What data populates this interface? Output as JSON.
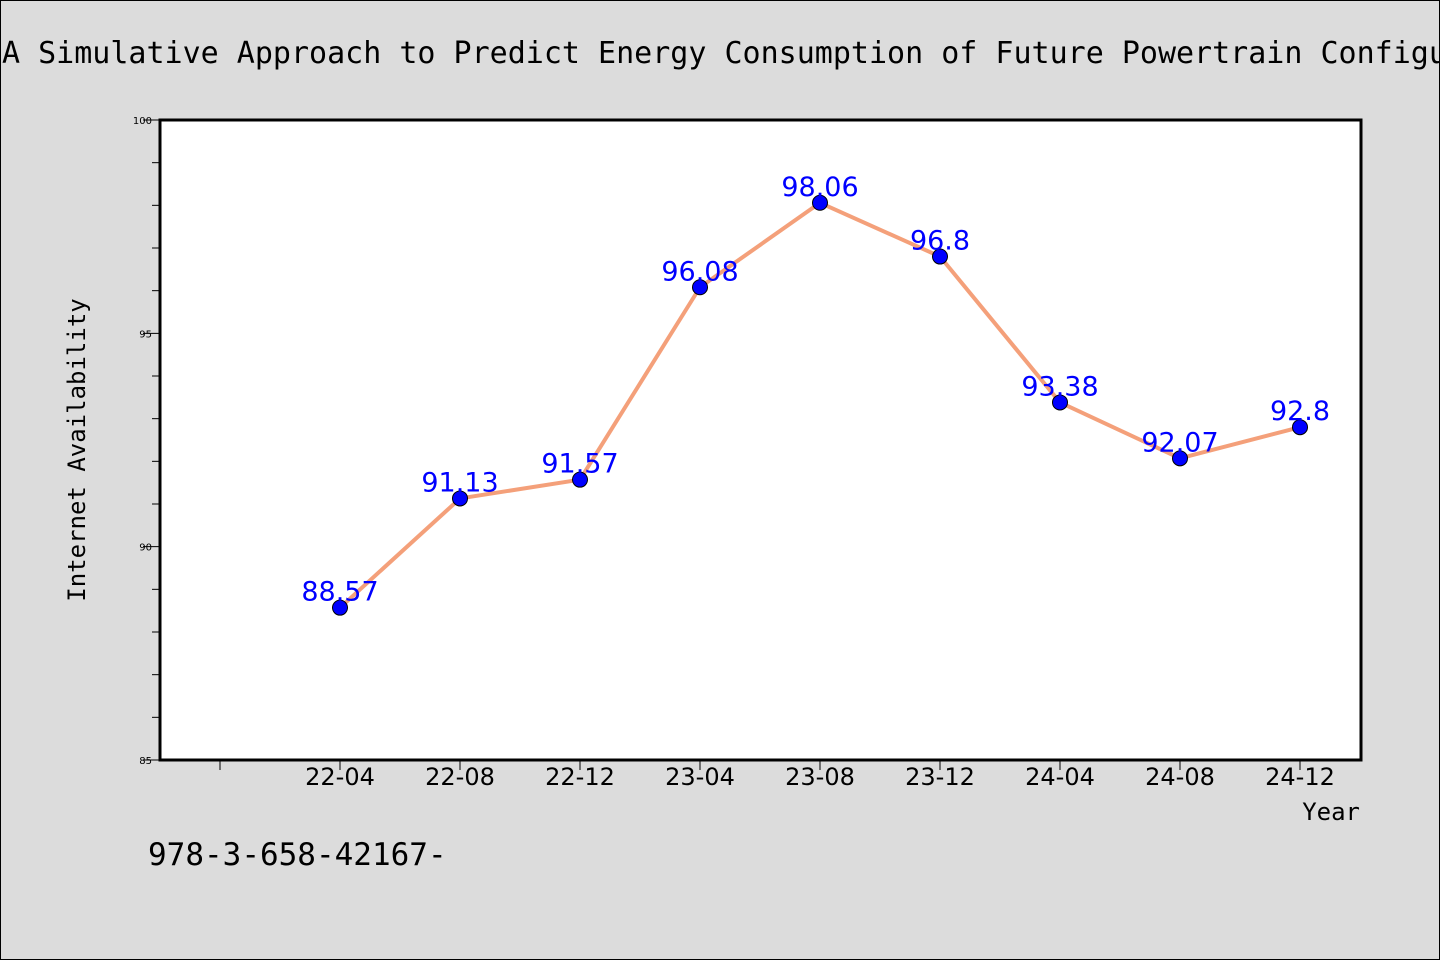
{
  "chart_data": {
    "type": "line",
    "title": "A Simulative Approach to Predict Energy Consumption of Future Powertrain Configu",
    "xlabel": "Year",
    "ylabel": "Internet Availability",
    "categories": [
      "22-04",
      "22-08",
      "22-12",
      "23-04",
      "23-08",
      "23-12",
      "24-04",
      "24-08",
      "24-12"
    ],
    "series": [
      {
        "name": "",
        "values": [
          88.57,
          91.13,
          91.57,
          96.08,
          98.06,
          96.8,
          93.38,
          92.07,
          92.8
        ],
        "labels": [
          "88.57",
          "91.13",
          "91.57",
          "96.08",
          "98.06",
          "96.8",
          "93.38",
          "92.07",
          "92.8"
        ],
        "line_color": "#f4a07a",
        "marker_color": "#0000ff"
      }
    ],
    "ylim": [
      85,
      100
    ],
    "y_ticks": [
      "85",
      "90",
      "95",
      "100"
    ],
    "grid": false,
    "legend": "none",
    "footer": "978-3-658-42167-"
  }
}
